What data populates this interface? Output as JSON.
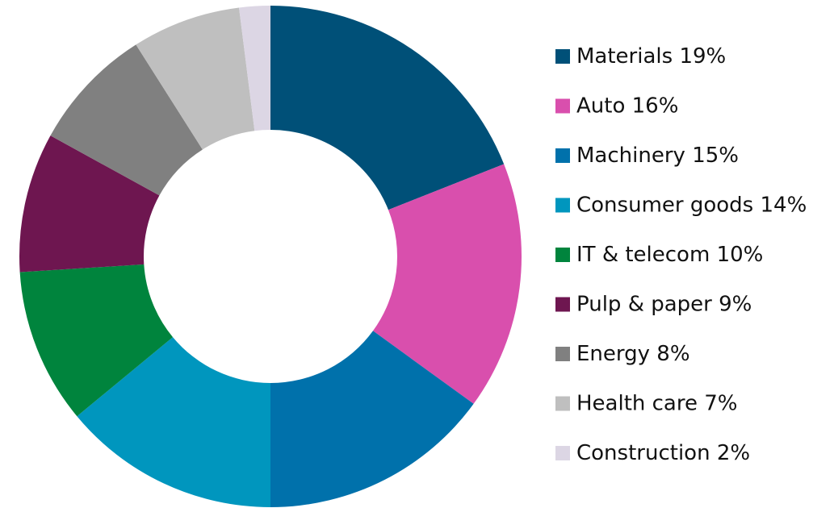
{
  "chart_data": {
    "type": "donut",
    "categories": [
      "Materials",
      "Auto",
      "Machinery",
      "Consumer goods",
      "IT & telecom",
      "Pulp & paper",
      "Energy",
      "Health care",
      "Construction"
    ],
    "values": [
      19,
      16,
      15,
      14,
      10,
      9,
      8,
      7,
      2
    ],
    "value_labels": [
      "19%",
      "16%",
      "15%",
      "14%",
      "10%",
      "9%",
      "8%",
      "7%",
      "2%"
    ],
    "colors": [
      "#005078",
      "#d94fad",
      "#0071ab",
      "#0096be",
      "#00843d",
      "#6e1650",
      "#808080",
      "#bfbfbf",
      "#dcd6e4"
    ]
  }
}
